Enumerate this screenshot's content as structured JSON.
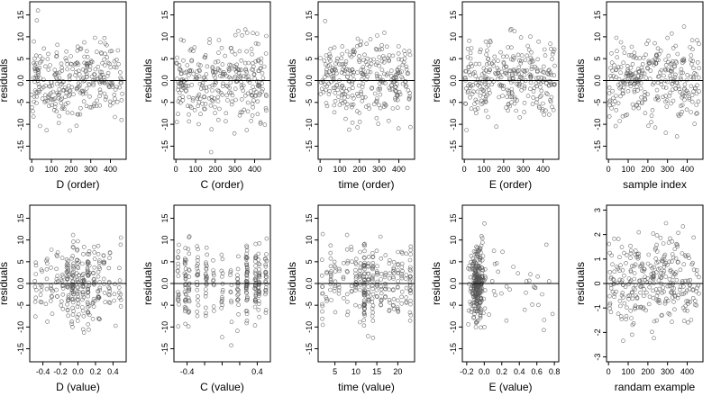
{
  "figure": {
    "y_axis_label": "residuals",
    "zero_line": true,
    "point_style": "open circle",
    "point_color": "#555555"
  },
  "chart_data": [
    {
      "type": "scatter",
      "xlabel": "D (order)",
      "ylabel": "residuals",
      "xlim": [
        -10,
        480
      ],
      "ylim": [
        -18,
        18
      ],
      "xticks": [
        0,
        100,
        200,
        300,
        400
      ],
      "xtick_labels": [
        "0",
        "100",
        "200",
        "300",
        "400"
      ],
      "yticks": [
        -15,
        -10,
        -5,
        0,
        5,
        10,
        15
      ],
      "ytick_labels": [
        "-15",
        "-10",
        "-5",
        "0.0",
        "5",
        "10",
        "15"
      ],
      "distribution": {
        "kind": "index",
        "n": 300,
        "x_range": [
          0,
          460
        ],
        "sd": 5,
        "seed": 11
      }
    },
    {
      "type": "scatter",
      "xlabel": "C (order)",
      "ylabel": "residuals",
      "xlim": [
        -10,
        480
      ],
      "ylim": [
        -18,
        18
      ],
      "xticks": [
        0,
        100,
        200,
        300,
        400
      ],
      "xtick_labels": [
        "0",
        "100",
        "200",
        "300",
        "400"
      ],
      "yticks": [
        -15,
        -10,
        -5,
        0,
        5,
        10,
        15
      ],
      "ytick_labels": [
        "-15",
        "-10",
        "-5",
        "0.0",
        "5",
        "10",
        "15"
      ],
      "distribution": {
        "kind": "index",
        "n": 300,
        "x_range": [
          0,
          460
        ],
        "sd": 5,
        "seed": 23
      }
    },
    {
      "type": "scatter",
      "xlabel": "time (order)",
      "ylabel": "residuals",
      "xlim": [
        -10,
        480
      ],
      "ylim": [
        -18,
        18
      ],
      "xticks": [
        0,
        100,
        200,
        300,
        400
      ],
      "xtick_labels": [
        "0",
        "100",
        "200",
        "300",
        "400"
      ],
      "yticks": [
        -15,
        -10,
        -5,
        0,
        5,
        10,
        15
      ],
      "ytick_labels": [
        "-15",
        "-10",
        "-5",
        "0.0",
        "5",
        "10",
        "15"
      ],
      "distribution": {
        "kind": "index",
        "n": 300,
        "x_range": [
          0,
          460
        ],
        "sd": 5,
        "seed": 37
      }
    },
    {
      "type": "scatter",
      "xlabel": "E (order)",
      "ylabel": "residuals",
      "xlim": [
        -10,
        480
      ],
      "ylim": [
        -18,
        18
      ],
      "xticks": [
        0,
        100,
        200,
        300,
        400
      ],
      "xtick_labels": [
        "0",
        "100",
        "200",
        "300",
        "400"
      ],
      "yticks": [
        -15,
        -10,
        -5,
        0,
        5,
        10,
        15
      ],
      "ytick_labels": [
        "-15",
        "-10",
        "-5",
        "0.0",
        "5",
        "10",
        "15"
      ],
      "distribution": {
        "kind": "index",
        "n": 300,
        "x_range": [
          0,
          460
        ],
        "sd": 5,
        "seed": 41
      }
    },
    {
      "type": "scatter",
      "xlabel": "sample index",
      "ylabel": "residuals",
      "xlim": [
        -10,
        480
      ],
      "ylim": [
        -18,
        18
      ],
      "xticks": [
        0,
        100,
        200,
        300,
        400
      ],
      "xtick_labels": [
        "0",
        "100",
        "200",
        "300",
        "400"
      ],
      "yticks": [
        -15,
        -10,
        -5,
        0,
        5,
        10,
        15
      ],
      "ytick_labels": [
        "-15",
        "-10",
        "-5",
        "0.0",
        "5",
        "10",
        "15"
      ],
      "distribution": {
        "kind": "index",
        "n": 300,
        "x_range": [
          0,
          460
        ],
        "sd": 5,
        "seed": 53
      }
    },
    {
      "type": "scatter",
      "xlabel": "D (value)",
      "ylabel": "residuals",
      "xlim": [
        -0.55,
        0.55
      ],
      "ylim": [
        -18,
        18
      ],
      "xticks": [
        -0.4,
        -0.2,
        0,
        0.2,
        0.4
      ],
      "xtick_labels": [
        "-0.4",
        "-0.2",
        "0.0",
        "0.2",
        "0.4"
      ],
      "yticks": [
        -15,
        -10,
        -5,
        0,
        5,
        10,
        15
      ],
      "ytick_labels": [
        "-15",
        "-10",
        "-5",
        "0.0",
        "5",
        "10",
        "15"
      ],
      "distribution": {
        "kind": "columns",
        "n": 300,
        "columns": [
          -0.48,
          -0.42,
          -0.36,
          -0.3,
          -0.24,
          -0.18,
          -0.12,
          -0.06,
          0.0,
          0.06,
          0.12,
          0.18,
          0.24,
          0.3,
          0.36,
          0.42,
          0.48
        ],
        "weights": [
          1,
          1,
          1,
          1,
          1,
          2,
          3,
          4,
          3,
          4,
          3,
          2,
          2,
          1,
          1,
          1,
          1
        ],
        "jitter": 0.012,
        "sd": 5,
        "seed": 61
      }
    },
    {
      "type": "scatter",
      "xlabel": "C (value)",
      "ylabel": "residuals",
      "xlim": [
        -0.55,
        0.55
      ],
      "ylim": [
        -18,
        18
      ],
      "xticks": [
        -0.4,
        -0.2,
        0,
        0.2,
        0.4
      ],
      "xtick_labels": [
        "-0.4",
        "",
        "",
        "",
        "0.4"
      ],
      "yticks": [
        -15,
        -10,
        -5,
        0,
        5,
        10,
        15
      ],
      "ytick_labels": [
        "-15",
        "-10",
        "-5",
        "0.0",
        "5",
        "10",
        "15"
      ],
      "distribution": {
        "kind": "columns",
        "n": 300,
        "columns": [
          -0.5,
          -0.42,
          -0.38,
          -0.28,
          -0.18,
          -0.1,
          0.0,
          0.1,
          0.18,
          0.28,
          0.38,
          0.42,
          0.5
        ],
        "weights": [
          2,
          3,
          3,
          2,
          2,
          1,
          1,
          1,
          2,
          3,
          3,
          3,
          2
        ],
        "jitter": 0.008,
        "sd": 5,
        "seed": 71
      }
    },
    {
      "type": "scatter",
      "xlabel": "time (value)",
      "ylabel": "residuals",
      "xlim": [
        1,
        24
      ],
      "ylim": [
        -18,
        18
      ],
      "xticks": [
        5,
        10,
        15,
        20
      ],
      "xtick_labels": [
        "5",
        "10",
        "15",
        "20"
      ],
      "yticks": [
        -15,
        -10,
        -5,
        0,
        5,
        10,
        15
      ],
      "ytick_labels": [
        "-15",
        "-10",
        "-5",
        "0.0",
        "5",
        "10",
        "15"
      ],
      "distribution": {
        "kind": "columns",
        "n": 300,
        "columns": [
          2,
          3,
          4,
          5,
          6,
          7,
          8,
          9,
          10,
          11,
          12,
          13,
          14,
          15,
          16,
          17,
          18,
          19,
          20,
          21,
          22,
          23
        ],
        "weights": [
          1,
          1,
          1,
          1,
          1,
          1,
          1,
          1,
          2,
          2,
          4,
          2,
          2,
          1,
          1,
          1,
          1,
          1,
          1,
          1,
          1,
          2
        ],
        "jitter": 0.12,
        "sd": 5,
        "seed": 83
      }
    },
    {
      "type": "scatter",
      "xlabel": "E (value)",
      "ylabel": "residuals",
      "xlim": [
        -0.25,
        0.85
      ],
      "ylim": [
        -18,
        18
      ],
      "xticks": [
        -0.2,
        0,
        0.2,
        0.4,
        0.6,
        0.8
      ],
      "xtick_labels": [
        "-0.2",
        "0.0",
        "0.2",
        "0.4",
        "0.6",
        "0.8"
      ],
      "yticks": [
        -15,
        -10,
        -5,
        0,
        5,
        10,
        15
      ],
      "ytick_labels": [
        "-15",
        "-10",
        "-5",
        "0.0",
        "5",
        "10",
        "15"
      ],
      "distribution": {
        "kind": "skewed",
        "n": 300,
        "center": -0.08,
        "spread": 0.04,
        "tail_frac": 0.12,
        "tail_range": [
          0.05,
          0.8
        ],
        "sd": 5,
        "seed": 97
      }
    },
    {
      "type": "scatter",
      "xlabel": "randam example",
      "ylabel": "residuals",
      "xlim": [
        -10,
        480
      ],
      "ylim": [
        -3.2,
        3.2
      ],
      "xticks": [
        0,
        100,
        200,
        300,
        400
      ],
      "xtick_labels": [
        "0",
        "100",
        "200",
        "300",
        "400"
      ],
      "yticks": [
        -3,
        -2,
        -1,
        0,
        1,
        2,
        3
      ],
      "ytick_labels": [
        "-3",
        "-2",
        "-1",
        "0",
        "1",
        "2",
        "3"
      ],
      "distribution": {
        "kind": "index",
        "n": 300,
        "x_range": [
          0,
          460
        ],
        "sd": 1,
        "seed": 109
      }
    }
  ]
}
